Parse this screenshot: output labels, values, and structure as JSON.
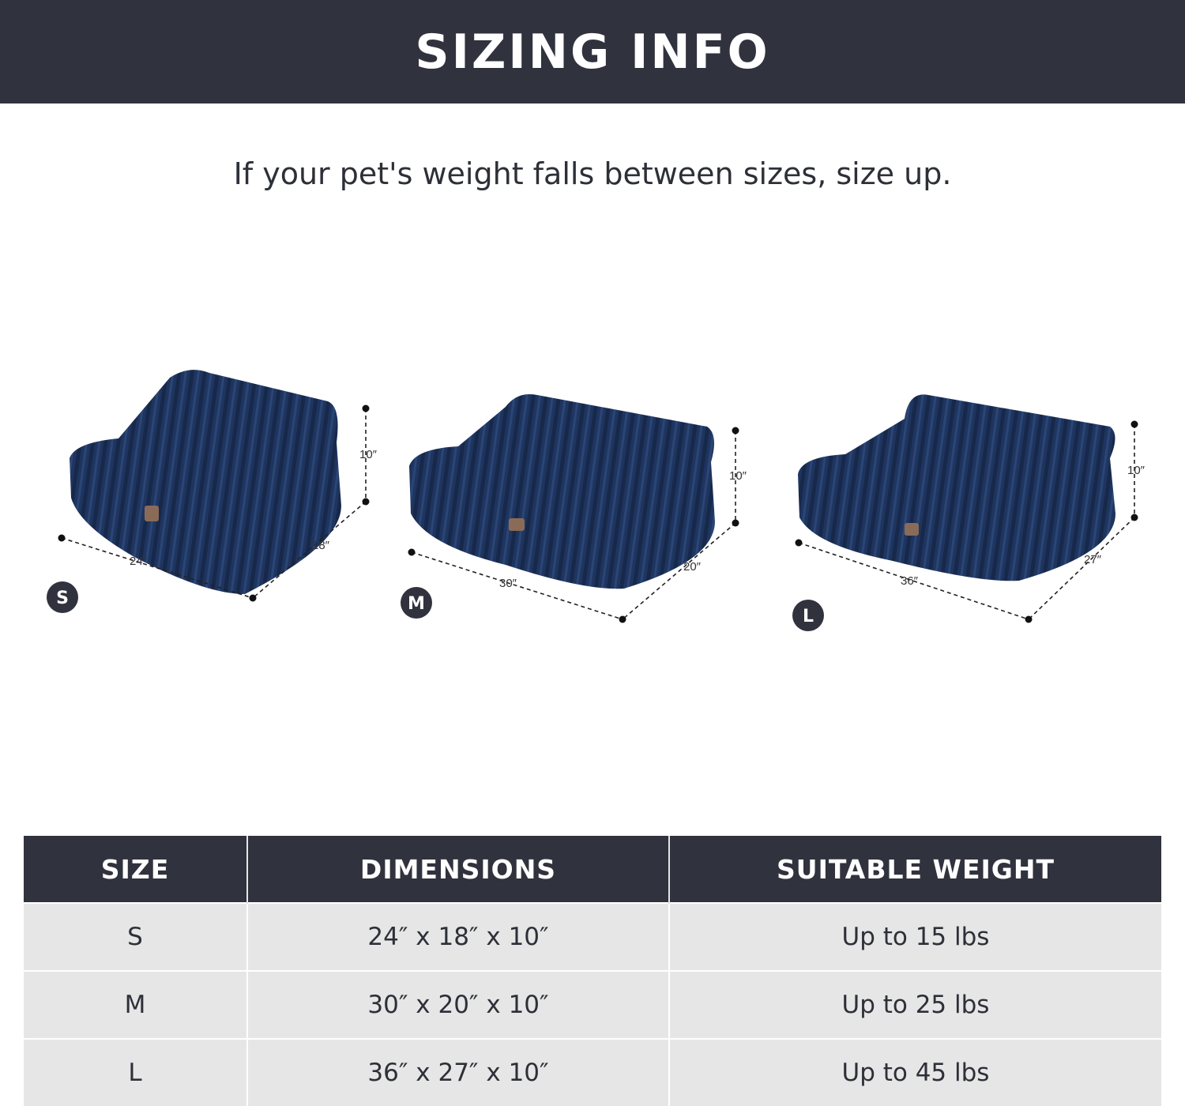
{
  "header": {
    "title": "SIZING INFO"
  },
  "subtitle": "If your pet's weight falls between sizes, size up.",
  "colors": {
    "header_bg": "#30323d",
    "row_bg": "#e6e6e6",
    "bed_fabric": "#1f3560",
    "badge": "#30323d"
  },
  "beds": [
    {
      "size": "S",
      "width": "24″",
      "depth": "18″",
      "height": "10″"
    },
    {
      "size": "M",
      "width": "30″",
      "depth": "20″",
      "height": "10″"
    },
    {
      "size": "L",
      "width": "36″",
      "depth": "27″",
      "height": "10″"
    }
  ],
  "table": {
    "headers": [
      "SIZE",
      "DIMENSIONS",
      "SUITABLE WEIGHT"
    ],
    "rows": [
      [
        "S",
        "24″ x 18″ x 10″",
        "Up to 15 lbs"
      ],
      [
        "M",
        "30″ x 20″ x 10″",
        "Up to 25 lbs"
      ],
      [
        "L",
        "36″ x 27″ x 10″",
        "Up to 45 lbs"
      ]
    ]
  }
}
